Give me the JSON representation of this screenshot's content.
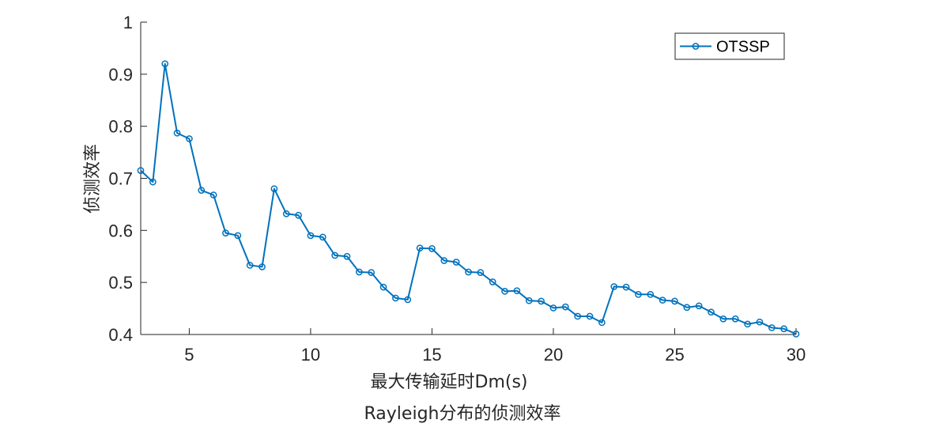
{
  "chart_data": {
    "type": "line",
    "title": "Rayleigh分布的侦测效率",
    "xlabel": "最大传输延时Dm(s)",
    "ylabel": "侦测效率",
    "xlim": [
      3,
      30
    ],
    "ylim": [
      0.4,
      1
    ],
    "xticks": [
      5,
      10,
      15,
      20,
      25,
      30
    ],
    "yticks": [
      0.4,
      0.5,
      0.6,
      0.7,
      0.8,
      0.9,
      1
    ],
    "ytick_labels": [
      "0.4",
      "0.5",
      "0.6",
      "0.7",
      "0.8",
      "0.9",
      "1"
    ],
    "grid": false,
    "legend_position": "top-right",
    "series": [
      {
        "name": "OTSSP",
        "color": "#0072BD",
        "marker": "circle",
        "x": [
          3,
          3.5,
          4,
          4.5,
          5,
          5.5,
          6,
          6.5,
          7,
          7.5,
          8,
          8.5,
          9,
          9.5,
          10,
          10.5,
          11,
          11.5,
          12,
          12.5,
          13,
          13.5,
          14,
          14.5,
          15,
          15.5,
          16,
          16.5,
          17,
          17.5,
          18,
          18.5,
          19,
          19.5,
          20,
          20.5,
          21,
          21.5,
          22,
          22.5,
          23,
          23.5,
          24,
          24.5,
          25,
          25.5,
          26,
          26.5,
          27,
          27.5,
          28,
          28.5,
          29,
          29.5,
          30
        ],
        "y": [
          0.715,
          0.693,
          0.92,
          0.787,
          0.776,
          0.677,
          0.668,
          0.595,
          0.59,
          0.533,
          0.53,
          0.68,
          0.632,
          0.629,
          0.59,
          0.587,
          0.552,
          0.55,
          0.52,
          0.519,
          0.491,
          0.47,
          0.467,
          0.566,
          0.565,
          0.542,
          0.539,
          0.52,
          0.519,
          0.501,
          0.483,
          0.484,
          0.465,
          0.464,
          0.451,
          0.453,
          0.435,
          0.435,
          0.423,
          0.492,
          0.491,
          0.477,
          0.477,
          0.466,
          0.464,
          0.452,
          0.455,
          0.443,
          0.43,
          0.43,
          0.42,
          0.424,
          0.413,
          0.411,
          0.401
        ]
      }
    ]
  }
}
